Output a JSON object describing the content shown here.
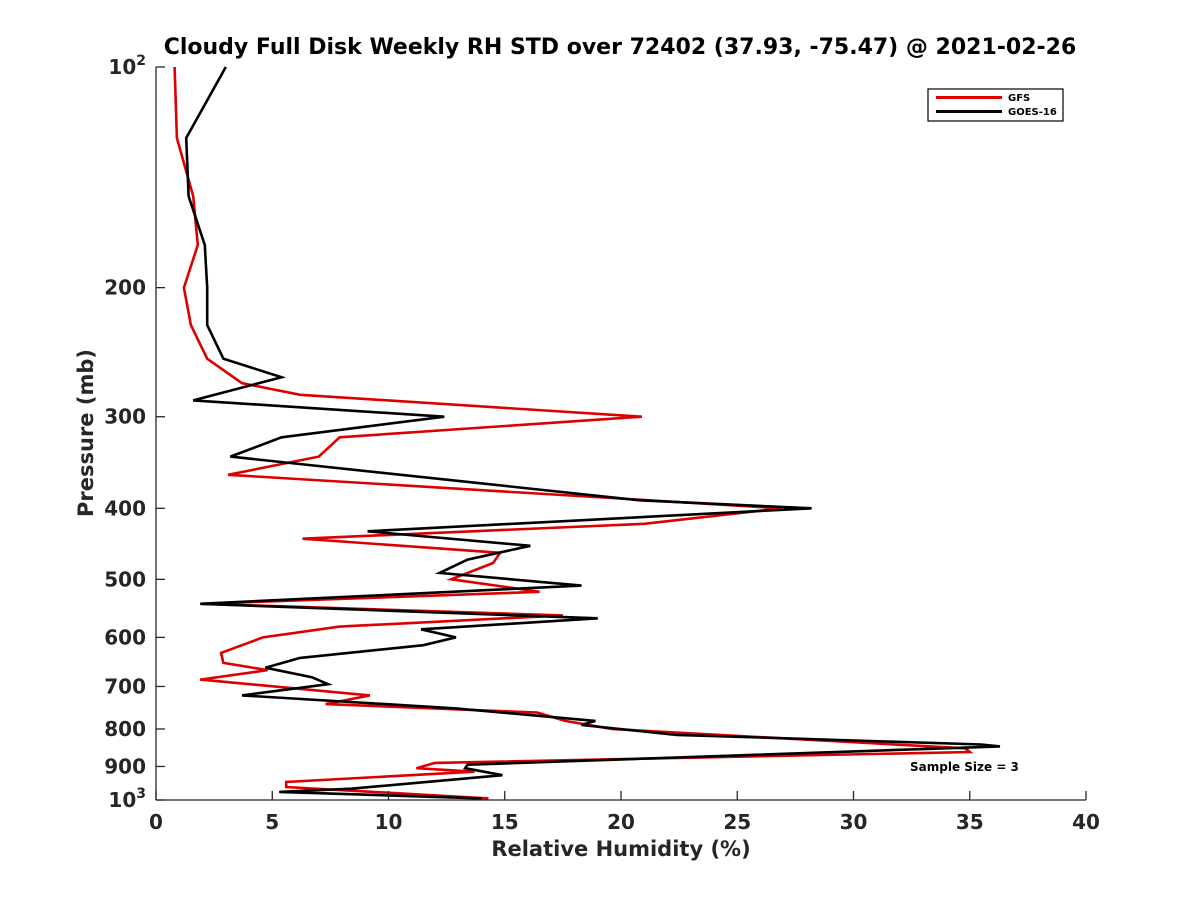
{
  "chart_data": {
    "type": "line",
    "title": "Cloudy Full Disk Weekly RH STD over 72402 (37.93, -75.47) @ 2021-02-26",
    "xlabel": "Relative Humidity (%)",
    "ylabel": "Pressure (mb)",
    "xlim": [
      0,
      40
    ],
    "ylim": [
      100,
      1000
    ],
    "yscale": "log",
    "y_reversed": true,
    "grid": false,
    "legend_position": "top-right",
    "x_ticks": [
      "0",
      "5",
      "10",
      "15",
      "20",
      "25",
      "30",
      "35",
      "40"
    ],
    "y_ticks": [
      {
        "value": 100,
        "base": "10",
        "exp": "2"
      },
      {
        "value": 200,
        "label": "200"
      },
      {
        "value": 300,
        "label": "300"
      },
      {
        "value": 400,
        "label": "400"
      },
      {
        "value": 500,
        "label": "500"
      },
      {
        "value": 600,
        "label": "600"
      },
      {
        "value": 700,
        "label": "700"
      },
      {
        "value": 800,
        "label": "800"
      },
      {
        "value": 900,
        "label": "900"
      },
      {
        "value": 1000,
        "base": "10",
        "exp": "3"
      }
    ],
    "annotation": "Sample Size = 3",
    "series": [
      {
        "name": "GFS",
        "color": "#dd0000",
        "points": [
          [
            0.8,
            100
          ],
          [
            0.9,
            125
          ],
          [
            1.6,
            150
          ],
          [
            1.8,
            175
          ],
          [
            1.2,
            200
          ],
          [
            1.5,
            225
          ],
          [
            2.2,
            250
          ],
          [
            3.7,
            270
          ],
          [
            6.2,
            280
          ],
          [
            20.9,
            300
          ],
          [
            7.9,
            320
          ],
          [
            7.0,
            340
          ],
          [
            3.1,
            360
          ],
          [
            26.9,
            400
          ],
          [
            21.0,
            420
          ],
          [
            6.3,
            440
          ],
          [
            14.8,
            460
          ],
          [
            14.5,
            475
          ],
          [
            12.7,
            500
          ],
          [
            16.5,
            520
          ],
          [
            2.0,
            540
          ],
          [
            17.5,
            560
          ],
          [
            7.9,
            580
          ],
          [
            4.6,
            600
          ],
          [
            2.8,
            630
          ],
          [
            2.9,
            650
          ],
          [
            4.8,
            665
          ],
          [
            1.9,
            685
          ],
          [
            9.2,
            720
          ],
          [
            7.3,
            740
          ],
          [
            16.4,
            760
          ],
          [
            17.6,
            780
          ],
          [
            19.6,
            800
          ],
          [
            34.8,
            850
          ],
          [
            35.0,
            860
          ],
          [
            12.0,
            890
          ],
          [
            11.2,
            905
          ],
          [
            13.7,
            915
          ],
          [
            5.6,
            945
          ],
          [
            5.6,
            960
          ],
          [
            14.3,
            995
          ]
        ]
      },
      {
        "name": "GOES-16",
        "color": "#000000",
        "points": [
          [
            3.0,
            100
          ],
          [
            1.3,
            125
          ],
          [
            1.4,
            150
          ],
          [
            2.1,
            175
          ],
          [
            2.2,
            200
          ],
          [
            2.2,
            225
          ],
          [
            2.9,
            250
          ],
          [
            5.4,
            265
          ],
          [
            1.6,
            285
          ],
          [
            12.4,
            300
          ],
          [
            5.4,
            320
          ],
          [
            3.2,
            340
          ],
          [
            20.8,
            390
          ],
          [
            28.2,
            400
          ],
          [
            9.1,
            430
          ],
          [
            16.1,
            450
          ],
          [
            13.4,
            470
          ],
          [
            12.2,
            490
          ],
          [
            18.3,
            510
          ],
          [
            1.9,
            540
          ],
          [
            19.0,
            565
          ],
          [
            11.4,
            585
          ],
          [
            12.9,
            600
          ],
          [
            11.5,
            615
          ],
          [
            6.2,
            640
          ],
          [
            4.7,
            660
          ],
          [
            6.7,
            680
          ],
          [
            7.4,
            695
          ],
          [
            3.7,
            720
          ],
          [
            12.9,
            750
          ],
          [
            18.9,
            780
          ],
          [
            18.3,
            790
          ],
          [
            22.4,
            815
          ],
          [
            35.5,
            840
          ],
          [
            36.3,
            845
          ],
          [
            13.4,
            895
          ],
          [
            13.3,
            905
          ],
          [
            14.9,
            925
          ],
          [
            8.4,
            965
          ],
          [
            5.3,
            975
          ],
          [
            14.0,
            995
          ]
        ]
      }
    ]
  }
}
